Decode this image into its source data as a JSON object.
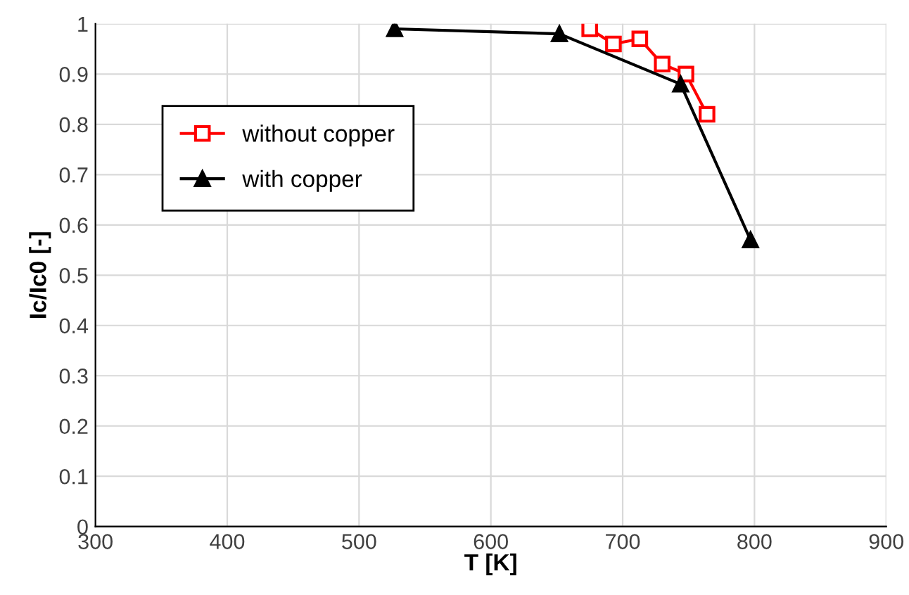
{
  "chart_data": {
    "type": "line",
    "xlabel": "T [K]",
    "ylabel": "Ic/Ic0 [-]",
    "xlim": [
      300,
      900
    ],
    "xticks": [
      300,
      400,
      500,
      600,
      700,
      800,
      900
    ],
    "ylim": [
      0,
      1
    ],
    "yticks": [
      0,
      0.1,
      0.2,
      0.3,
      0.4,
      0.5,
      0.6,
      0.7,
      0.8,
      0.9,
      1
    ],
    "grid": true,
    "legend": "top left",
    "series": [
      {
        "name": "without copper",
        "color": "#ff0000",
        "marker": "square",
        "x": [
          675,
          693,
          713,
          730,
          748,
          764
        ],
        "values": [
          0.99,
          0.96,
          0.97,
          0.92,
          0.9,
          0.82
        ]
      },
      {
        "name": "with copper",
        "color": "#000000",
        "marker": "triangle",
        "x": [
          527,
          652,
          744,
          797
        ],
        "values": [
          0.99,
          0.98,
          0.88,
          0.57
        ]
      }
    ]
  }
}
